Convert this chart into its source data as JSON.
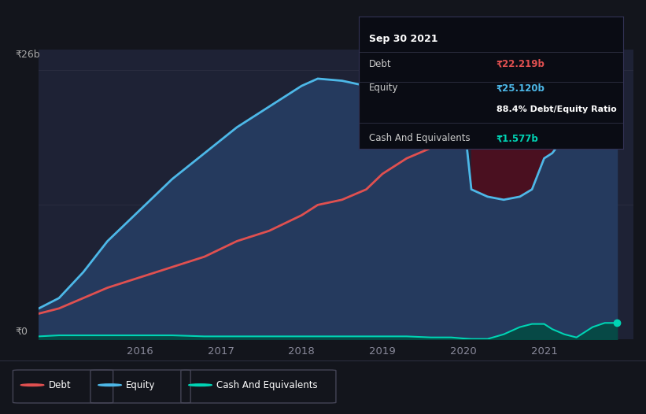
{
  "bg_color": "#13151c",
  "plot_bg_color": "#1e2235",
  "grid_color": "#2a2d40",
  "title_text": "Sep 30 2021",
  "tooltip": {
    "debt_label": "Debt",
    "debt_value": "₹22.219b",
    "equity_label": "Equity",
    "equity_value": "₹25.120b",
    "ratio": "88.4% Debt/Equity Ratio",
    "cash_label": "Cash And Equivalents",
    "cash_value": "₹1.577b"
  },
  "ylabel_top": "₹26b",
  "ylabel_bottom": "₹0",
  "x_ticks": [
    2016,
    2017,
    2018,
    2019,
    2020,
    2021
  ],
  "legend": [
    {
      "label": "Debt",
      "color": "#e05050"
    },
    {
      "label": "Equity",
      "color": "#4db8e8"
    },
    {
      "label": "Cash And Equivalents",
      "color": "#00d4b4"
    }
  ],
  "debt_color": "#e05050",
  "equity_color": "#4db8e8",
  "cash_color": "#00d4b4",
  "equity_fill_color": "#253a5e",
  "debt_gt_equity_fill": "#4a1020",
  "years": [
    2014.75,
    2015.0,
    2015.3,
    2015.6,
    2016.0,
    2016.4,
    2016.8,
    2017.2,
    2017.6,
    2018.0,
    2018.2,
    2018.5,
    2018.8,
    2019.0,
    2019.3,
    2019.6,
    2019.75,
    2019.85,
    2020.0,
    2020.1,
    2020.3,
    2020.5,
    2020.7,
    2020.85,
    2021.0,
    2021.1,
    2021.25,
    2021.4,
    2021.6,
    2021.75,
    2021.9
  ],
  "equity": [
    3.0,
    4.0,
    6.5,
    9.5,
    12.5,
    15.5,
    18.0,
    20.5,
    22.5,
    24.5,
    25.2,
    25.0,
    24.5,
    23.8,
    22.5,
    22.2,
    22.0,
    22.0,
    21.8,
    14.5,
    13.8,
    13.5,
    13.8,
    14.5,
    17.5,
    18.0,
    19.5,
    20.5,
    23.0,
    24.5,
    25.5
  ],
  "debt": [
    2.5,
    3.0,
    4.0,
    5.0,
    6.0,
    7.0,
    8.0,
    9.5,
    10.5,
    12.0,
    13.0,
    13.5,
    14.5,
    16.0,
    17.5,
    18.5,
    19.0,
    19.5,
    19.5,
    22.5,
    22.5,
    21.0,
    20.5,
    20.0,
    21.0,
    21.5,
    22.0,
    24.0,
    24.5,
    23.5,
    22.2
  ],
  "cash": [
    0.3,
    0.4,
    0.4,
    0.4,
    0.4,
    0.4,
    0.3,
    0.3,
    0.3,
    0.3,
    0.3,
    0.3,
    0.3,
    0.3,
    0.3,
    0.2,
    0.2,
    0.2,
    0.1,
    0.05,
    0.05,
    0.5,
    1.2,
    1.5,
    1.5,
    1.0,
    0.5,
    0.2,
    1.2,
    1.6,
    1.6
  ],
  "xlim": [
    2014.75,
    2022.1
  ],
  "ylim": [
    0,
    28
  ]
}
